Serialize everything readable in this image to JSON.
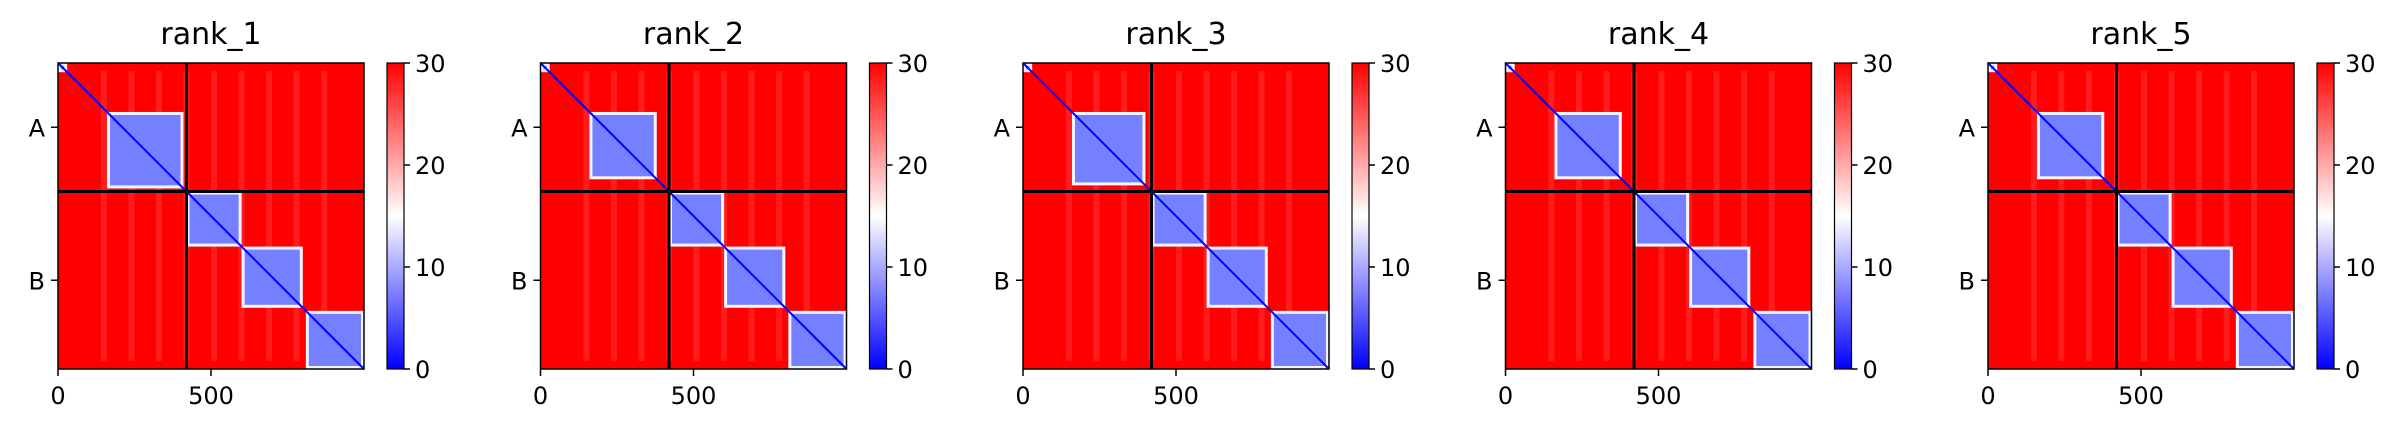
{
  "chart_data": [
    {
      "type": "heatmap",
      "title": "rank_1",
      "xticks": [
        0,
        500
      ],
      "xlim": [
        0,
        1000
      ],
      "ytick_labels": [
        "A",
        "B"
      ],
      "chain_boundary": 420,
      "colorbar": {
        "ticks": [
          0,
          10,
          20,
          30
        ],
        "range": [
          0,
          30
        ],
        "colors": [
          "#0000ff",
          "#ffffff",
          "#ff0000"
        ]
      },
      "confident_blocks": [
        [
          0,
          30
        ],
        [
          160,
          410
        ],
        [
          420,
          600
        ],
        [
          600,
          800
        ],
        [
          810,
          1000
        ]
      ]
    },
    {
      "type": "heatmap",
      "title": "rank_2",
      "xticks": [
        0,
        500
      ],
      "xlim": [
        0,
        1000
      ],
      "ytick_labels": [
        "A",
        "B"
      ],
      "chain_boundary": 420,
      "colorbar": {
        "ticks": [
          0,
          10,
          20,
          30
        ],
        "range": [
          0,
          30
        ],
        "colors": [
          "#0000ff",
          "#ffffff",
          "#ff0000"
        ]
      },
      "confident_blocks": [
        [
          0,
          30
        ],
        [
          160,
          380
        ],
        [
          420,
          600
        ],
        [
          600,
          800
        ],
        [
          810,
          1000
        ]
      ]
    },
    {
      "type": "heatmap",
      "title": "rank_3",
      "xticks": [
        0,
        500
      ],
      "xlim": [
        0,
        1000
      ],
      "ytick_labels": [
        "A",
        "B"
      ],
      "chain_boundary": 420,
      "colorbar": {
        "ticks": [
          0,
          10,
          20,
          30
        ],
        "range": [
          0,
          30
        ],
        "colors": [
          "#0000ff",
          "#ffffff",
          "#ff0000"
        ]
      },
      "confident_blocks": [
        [
          0,
          30
        ],
        [
          160,
          400
        ],
        [
          420,
          600
        ],
        [
          600,
          800
        ],
        [
          810,
          1000
        ]
      ]
    },
    {
      "type": "heatmap",
      "title": "rank_4",
      "xticks": [
        0,
        500
      ],
      "xlim": [
        0,
        1000
      ],
      "ytick_labels": [
        "A",
        "B"
      ],
      "chain_boundary": 420,
      "colorbar": {
        "ticks": [
          0,
          10,
          20,
          30
        ],
        "range": [
          0,
          30
        ],
        "colors": [
          "#0000ff",
          "#ffffff",
          "#ff0000"
        ]
      },
      "confident_blocks": [
        [
          0,
          30
        ],
        [
          160,
          380
        ],
        [
          420,
          600
        ],
        [
          600,
          800
        ],
        [
          810,
          1000
        ]
      ]
    },
    {
      "type": "heatmap",
      "title": "rank_5",
      "xticks": [
        0,
        500
      ],
      "xlim": [
        0,
        1000
      ],
      "ytick_labels": [
        "A",
        "B"
      ],
      "chain_boundary": 420,
      "colorbar": {
        "ticks": [
          0,
          10,
          20,
          30
        ],
        "range": [
          0,
          30
        ],
        "colors": [
          "#0000ff",
          "#ffffff",
          "#ff0000"
        ]
      },
      "confident_blocks": [
        [
          0,
          30
        ],
        [
          160,
          380
        ],
        [
          420,
          600
        ],
        [
          600,
          800
        ],
        [
          810,
          1000
        ]
      ]
    }
  ]
}
